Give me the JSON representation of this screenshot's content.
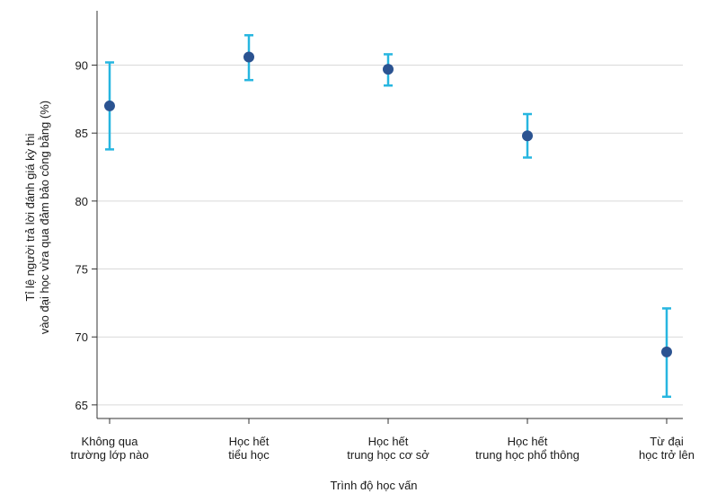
{
  "chart_data": {
    "type": "scatter",
    "title": "",
    "xlabel": "Trình độ học vấn",
    "ylabel": [
      "Tỉ lệ người trả lời đánh giá kỳ thi",
      "vào đại học vừa qua đảm bảo công bằng (%)"
    ],
    "ylim": [
      64,
      94
    ],
    "yticks": [
      65,
      70,
      75,
      80,
      85,
      90
    ],
    "grid": "horizontal",
    "categories": [
      [
        "Không qua",
        "trường lớp nào"
      ],
      [
        "Học hết",
        "tiểu học"
      ],
      [
        "Học hết",
        "trung học cơ sở"
      ],
      [
        "Học hết",
        "trung học phổ thông"
      ],
      [
        "Từ đại",
        "học trở lên"
      ]
    ],
    "series": [
      {
        "values": [
          87.0,
          90.6,
          89.7,
          84.8,
          68.9
        ],
        "error_low": [
          83.8,
          88.9,
          88.5,
          83.2,
          65.6
        ],
        "error_high": [
          90.2,
          92.2,
          90.8,
          86.4,
          72.1
        ]
      }
    ],
    "colors": {
      "point": "#2b5391",
      "error_bar": "#27b6e0",
      "grid": "#d9d9d9",
      "axis": "#333333"
    }
  }
}
